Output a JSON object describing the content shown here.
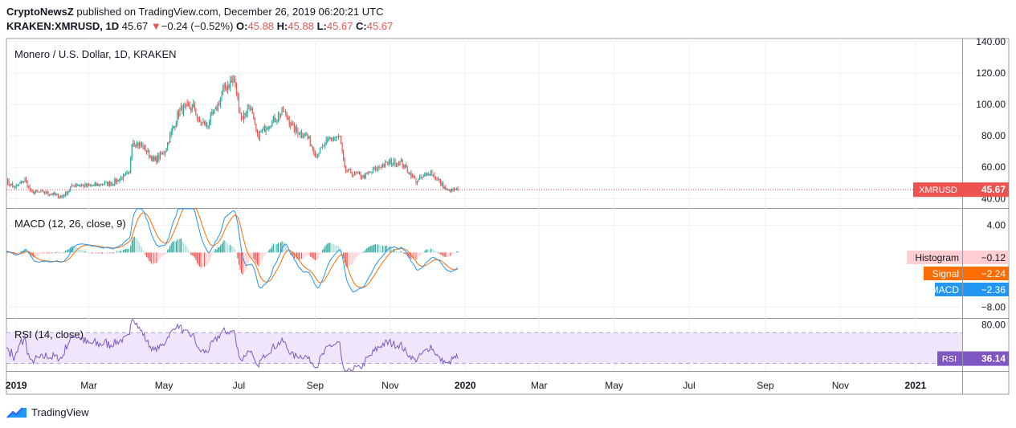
{
  "header": {
    "publisher": "CryptoNewsZ",
    "published_text": "published on TradingView.com, December 26, 2019 06:20:21 UTC",
    "symbol": "KRAKEN:XMRUSD, 1D",
    "last": "45.67",
    "down_arrow": "▼",
    "change": "−0.24 (−0.52%)",
    "o_label": "O:",
    "o_val": "45.88",
    "h_label": "H:",
    "h_val": "45.88",
    "l_label": "L:",
    "l_val": "45.67",
    "c_label": "C:",
    "c_val": "45.67"
  },
  "colors": {
    "up": "#26a69a",
    "down": "#ef5350",
    "macd": "#2196f3",
    "signal": "#ff6d00",
    "rsi": "#7e57c2",
    "rsi_band": "#f0e6fb",
    "hist_pos": "#26a69a",
    "hist_pos_light": "#b2dfdb",
    "hist_neg": "#ef5350",
    "hist_neg_light": "#ffcdd2",
    "grid": "#eef1f5",
    "axis_text": "#131722"
  },
  "chart_data": [
    {
      "type": "candlestick",
      "title": "Monero / U.S. Dollar, 1D, KRAKEN",
      "ylim": [
        34,
        142
      ],
      "y_ticks": [
        "40.00",
        "60.00",
        "80.00",
        "100.00",
        "120.00",
        "140.00"
      ],
      "y_tick_values": [
        40,
        60,
        80,
        100,
        120,
        140
      ],
      "last_label": "XMRUSD",
      "last_value": "45.67",
      "last_numeric": 45.67,
      "grid": true,
      "x_range": [
        "2018-12-24",
        "2021-02-08"
      ],
      "anchors": [
        [
          "2018-12-24",
          51
        ],
        [
          "2018-12-31",
          47
        ],
        [
          "2019-01-08",
          52
        ],
        [
          "2019-01-13",
          44
        ],
        [
          "2019-01-25",
          44
        ],
        [
          "2019-02-07",
          41
        ],
        [
          "2019-02-17",
          49
        ],
        [
          "2019-03-01",
          48
        ],
        [
          "2019-03-20",
          50
        ],
        [
          "2019-04-03",
          56
        ],
        [
          "2019-04-05",
          77
        ],
        [
          "2019-04-14",
          73
        ],
        [
          "2019-04-23",
          64
        ],
        [
          "2019-05-01",
          69
        ],
        [
          "2019-05-08",
          84
        ],
        [
          "2019-05-14",
          97
        ],
        [
          "2019-05-26",
          98
        ],
        [
          "2019-05-29",
          89
        ],
        [
          "2019-06-05",
          87
        ],
        [
          "2019-06-12",
          96
        ],
        [
          "2019-06-19",
          110
        ],
        [
          "2019-06-27",
          116
        ],
        [
          "2019-07-03",
          91
        ],
        [
          "2019-07-10",
          99
        ],
        [
          "2019-07-16",
          79
        ],
        [
          "2019-07-23",
          86
        ],
        [
          "2019-07-31",
          91
        ],
        [
          "2019-08-06",
          96
        ],
        [
          "2019-08-15",
          84
        ],
        [
          "2019-08-25",
          80
        ],
        [
          "2019-09-02",
          68
        ],
        [
          "2019-09-13",
          78
        ],
        [
          "2019-09-21",
          79
        ],
        [
          "2019-09-25",
          58
        ],
        [
          "2019-10-10",
          54
        ],
        [
          "2019-10-25",
          61
        ],
        [
          "2019-11-01",
          63
        ],
        [
          "2019-11-10",
          63
        ],
        [
          "2019-11-22",
          51
        ],
        [
          "2019-12-04",
          57
        ],
        [
          "2019-12-17",
          45
        ],
        [
          "2019-12-26",
          45.67
        ]
      ]
    },
    {
      "type": "line",
      "title": "MACD (12, 26, close, 9)",
      "ylim": [
        -9.6,
        6.4
      ],
      "y_ticks": [
        "4.00",
        "−8.00"
      ],
      "y_tick_values": [
        4,
        -8
      ],
      "series": [
        {
          "name": "Histogram",
          "value": "−0.12",
          "numeric": -0.12
        },
        {
          "name": "Signal",
          "value": "−2.24",
          "numeric": -2.24
        },
        {
          "name": "MACD",
          "value": "−2.36",
          "numeric": -2.36
        }
      ]
    },
    {
      "type": "line",
      "title": "RSI (14, close)",
      "ylim": [
        20,
        88
      ],
      "y_ticks": [
        "80.00"
      ],
      "y_tick_values": [
        80
      ],
      "bands": [
        70,
        30
      ],
      "last_label": "RSI",
      "last_value": "36.14",
      "last_numeric": 36.14
    },
    {
      "type": "axis",
      "x_ticks": [
        {
          "label": "2019",
          "date": "2019-01-01",
          "bold": true
        },
        {
          "label": "Mar",
          "date": "2019-03-01"
        },
        {
          "label": "May",
          "date": "2019-05-01"
        },
        {
          "label": "Jul",
          "date": "2019-07-01"
        },
        {
          "label": "Sep",
          "date": "2019-09-01"
        },
        {
          "label": "Nov",
          "date": "2019-11-01"
        },
        {
          "label": "2020",
          "date": "2020-01-01",
          "bold": true
        },
        {
          "label": "Mar",
          "date": "2020-03-01"
        },
        {
          "label": "May",
          "date": "2020-05-01"
        },
        {
          "label": "Jul",
          "date": "2020-07-01"
        },
        {
          "label": "Sep",
          "date": "2020-09-01"
        },
        {
          "label": "Nov",
          "date": "2020-11-01"
        },
        {
          "label": "2021",
          "date": "2021-01-01",
          "bold": true
        }
      ]
    }
  ],
  "footer": {
    "brand": "TradingView",
    "logo_icon": "tradingview-logo-icon"
  }
}
